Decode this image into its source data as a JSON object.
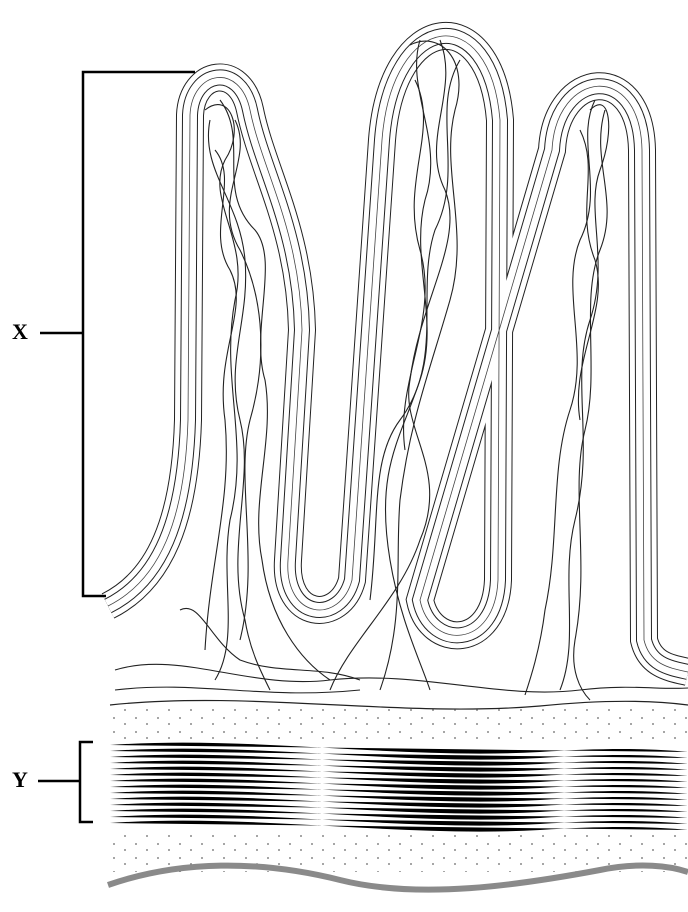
{
  "labels": {
    "x": "X",
    "y": "Y"
  }
}
